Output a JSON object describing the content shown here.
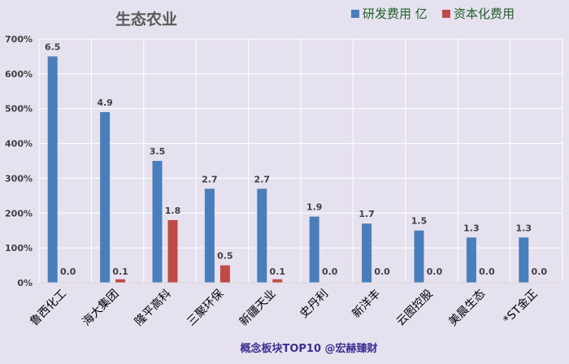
{
  "chart_data": {
    "type": "bar",
    "title": "生态农业",
    "categories": [
      "鲁西化工",
      "海大集团",
      "隆平高科",
      "三聚环保",
      "新疆天业",
      "史丹利",
      "新洋丰",
      "云图控股",
      "美晨生态",
      "*ST金正"
    ],
    "series": [
      {
        "name": "研发费用 亿",
        "color": "#4a7ebb",
        "values": [
          6.5,
          4.9,
          3.5,
          2.7,
          2.7,
          1.9,
          1.7,
          1.5,
          1.3,
          1.3
        ],
        "labels": [
          "6.5",
          "4.9",
          "3.5",
          "2.7",
          "2.7",
          "1.9",
          "1.7",
          "1.5",
          "1.3",
          "1.3"
        ]
      },
      {
        "name": "资本化费用",
        "color": "#be4b48",
        "values": [
          0.0,
          0.1,
          1.8,
          0.5,
          0.1,
          0.0,
          0.0,
          0.0,
          0.0,
          0.0
        ],
        "labels": [
          "0.0",
          "0.1",
          "1.8",
          "0.5",
          "0.1",
          "0.0",
          "0.0",
          "0.0",
          "0.0",
          "0.0"
        ]
      }
    ],
    "ylim": [
      0,
      7
    ],
    "yticks": [
      0,
      1,
      2,
      3,
      4,
      5,
      6,
      7
    ],
    "ytick_labels": [
      "0%",
      "100%",
      "200%",
      "300%",
      "400%",
      "500%",
      "600%",
      "700%"
    ],
    "grid": true,
    "legend_position": "top-right"
  },
  "footer": "概念板块TOP10 @宏赫臻财"
}
